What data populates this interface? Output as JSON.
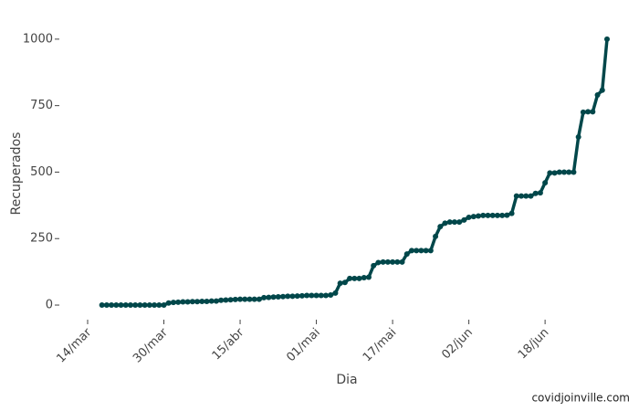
{
  "chart_data": {
    "type": "line",
    "x_label": "Dia",
    "y_label": "Recuperados",
    "annotation": "covidjoinville.com",
    "color": "#00474a",
    "x": [
      "14/mar",
      "15/mar",
      "16/mar",
      "17/mar",
      "18/mar",
      "19/mar",
      "20/mar",
      "21/mar",
      "22/mar",
      "23/mar",
      "24/mar",
      "25/mar",
      "26/mar",
      "27/mar",
      "28/mar",
      "29/mar",
      "30/mar",
      "31/mar",
      "01/abr",
      "02/abr",
      "03/abr",
      "04/abr",
      "05/abr",
      "06/abr",
      "07/abr",
      "08/abr",
      "09/abr",
      "10/abr",
      "11/abr",
      "12/abr",
      "13/abr",
      "14/abr",
      "15/abr",
      "16/abr",
      "17/abr",
      "18/abr",
      "19/abr",
      "20/abr",
      "21/abr",
      "22/abr",
      "23/abr",
      "24/abr",
      "25/abr",
      "26/abr",
      "27/abr",
      "28/abr",
      "29/abr",
      "30/abr",
      "01/mai",
      "02/mai",
      "03/mai",
      "04/mai",
      "05/mai",
      "06/mai",
      "07/mai",
      "08/mai",
      "09/mai",
      "10/mai",
      "11/mai",
      "12/mai",
      "13/mai",
      "14/mai",
      "15/mai",
      "16/mai",
      "17/mai",
      "18/mai",
      "19/mai",
      "20/mai",
      "21/mai",
      "22/mai",
      "23/mai",
      "24/mai",
      "25/mai",
      "26/mai",
      "27/mai",
      "28/mai",
      "29/mai",
      "30/mai",
      "31/mai",
      "01/jun",
      "02/jun",
      "03/jun",
      "04/jun",
      "05/jun",
      "06/jun",
      "07/jun",
      "08/jun",
      "09/jun",
      "10/jun",
      "11/jun",
      "12/jun",
      "13/jun",
      "14/jun",
      "15/jun",
      "16/jun",
      "17/jun",
      "18/jun",
      "19/jun",
      "20/jun",
      "21/jun",
      "22/jun",
      "23/jun",
      "24/jun",
      "25/jun",
      "26/jun",
      "27/jun",
      "28/jun",
      "29/jun",
      "30/jun",
      "01/jul"
    ],
    "values": [
      null,
      null,
      null,
      0,
      0,
      0,
      0,
      0,
      0,
      0,
      0,
      0,
      0,
      0,
      0,
      0,
      0,
      8,
      10,
      11,
      12,
      12,
      13,
      13,
      14,
      14,
      15,
      15,
      18,
      19,
      20,
      21,
      22,
      22,
      22,
      22,
      22,
      28,
      29,
      30,
      31,
      32,
      33,
      33,
      34,
      35,
      36,
      36,
      36,
      36,
      36,
      38,
      45,
      82,
      85,
      100,
      100,
      100,
      103,
      105,
      148,
      160,
      162,
      162,
      162,
      162,
      162,
      192,
      205,
      205,
      205,
      205,
      205,
      258,
      295,
      308,
      312,
      312,
      312,
      320,
      330,
      333,
      335,
      337,
      337,
      337,
      337,
      337,
      338,
      345,
      410,
      410,
      410,
      410,
      420,
      422,
      460,
      497,
      497,
      500,
      500,
      500,
      500,
      632,
      725,
      727,
      727,
      790,
      808,
      1000
    ],
    "xticks": [
      "14/mar",
      "30/mar",
      "15/abr",
      "01/mai",
      "17/mai",
      "02/jun",
      "18/jun"
    ],
    "ylim": [
      -48,
      1027
    ],
    "yticks": [
      0,
      250,
      500,
      750,
      1000
    ],
    "grid": false
  }
}
